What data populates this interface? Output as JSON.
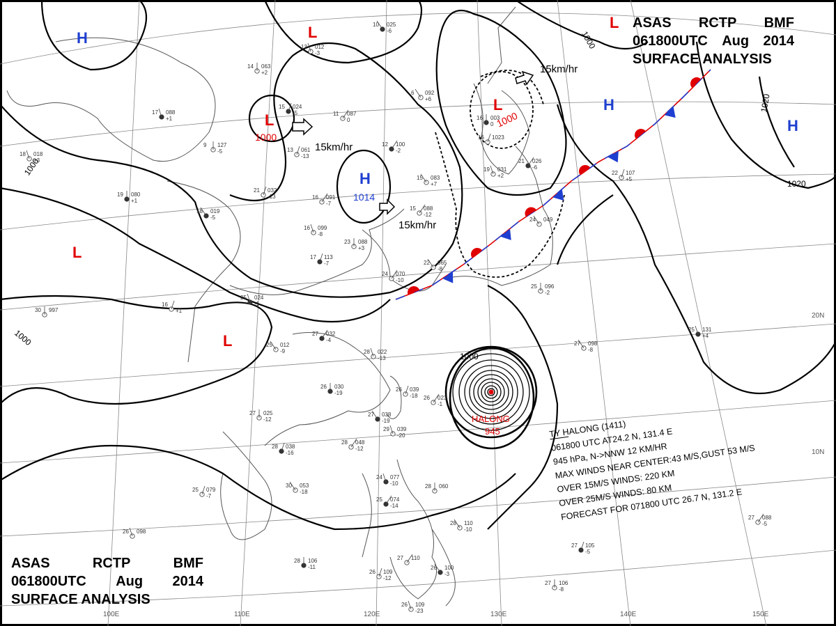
{
  "header": {
    "agency_code": "ASAS",
    "station": "RCTP",
    "issuer": "BMF",
    "datetime": "061800UTC",
    "month": "Aug",
    "year": "2014",
    "title": "SURFACE ANALYSIS"
  },
  "typhoon": {
    "name": "HALONG",
    "pressure_label": "945",
    "info_lines": [
      "TY HALONG  (1411)",
      "061800 UTC  AT24.2 N, 131.4 E",
      "945 hPa, N->NNW  12 KM/HR",
      "MAX WINDS NEAR CENTER:43 M/S,GUST 53 M/S",
      "OVER 15M/S WINDS: 220 KM",
      "OVER 25M/S WINDS: 80 KM",
      "FORECAST FOR 071800 UTC 26.7 N, 131.2 E"
    ]
  },
  "pressure_systems": [
    {
      "type": "H",
      "value": "",
      "color": "#1f3fd0"
    },
    {
      "type": "H",
      "value": "1014",
      "color": "#1f3fd0"
    },
    {
      "type": "H",
      "value": "",
      "color": "#1f3fd0"
    },
    {
      "type": "H",
      "value": "",
      "color": "#1f3fd0"
    },
    {
      "type": "L",
      "value": "",
      "color": "#e00000"
    },
    {
      "type": "L",
      "value": "1000",
      "color": "#e00000"
    },
    {
      "type": "L",
      "value": "1000",
      "color": "#e00000"
    },
    {
      "type": "L",
      "value": "",
      "color": "#e00000"
    },
    {
      "type": "L",
      "value": "",
      "color": "#e00000"
    },
    {
      "type": "L",
      "value": "",
      "color": "#e00000"
    }
  ],
  "movement_labels": [
    "15km/hr",
    "15km/hr",
    "15km/hr"
  ],
  "isobar_labels": [
    "1000",
    "1000",
    "1000",
    "1000",
    "1020",
    "1020"
  ],
  "latitude_labels": [
    "20N",
    "10N"
  ],
  "longitude_labels": [
    "100E",
    "110E",
    "120E",
    "130E",
    "140E",
    "150E"
  ],
  "front": {
    "warm_color": "#e00000",
    "cold_color": "#1f3fd0",
    "type": "stationary"
  },
  "station_plots": [
    {
      "t": "10",
      "p": "025",
      "d": "-6"
    },
    {
      "t": "13",
      "p": "012",
      "d": "-3"
    },
    {
      "t": "14",
      "p": "063",
      "d": "+2"
    },
    {
      "t": "15",
      "p": "024",
      "d": "-5"
    },
    {
      "t": "11",
      "p": "087",
      "d": "0"
    },
    {
      "t": "6",
      "p": "092",
      "d": "+6"
    },
    {
      "t": "17",
      "p": "088",
      "d": "+1"
    },
    {
      "t": "9",
      "p": "127",
      "d": "-5"
    },
    {
      "t": "13",
      "p": "061",
      "d": "-13"
    },
    {
      "t": "12",
      "p": "100",
      "d": "-2"
    },
    {
      "t": "15",
      "p": "083",
      "d": "+7"
    },
    {
      "t": "18",
      "p": "018",
      "d": "+3"
    },
    {
      "t": "19",
      "p": "080",
      "d": "+1"
    },
    {
      "t": "21",
      "p": "032",
      "d": "-13"
    },
    {
      "t": "16",
      "p": "091",
      "d": "-7"
    },
    {
      "t": "18",
      "p": "019",
      "d": "-5"
    },
    {
      "t": "16",
      "p": "099",
      "d": "-8"
    },
    {
      "t": "23",
      "p": "088",
      "d": "+3"
    },
    {
      "t": "17",
      "p": "113",
      "d": "-7"
    },
    {
      "t": "24",
      "p": "070",
      "d": "-10"
    },
    {
      "t": "22",
      "p": "065",
      "d": "-8"
    },
    {
      "t": "25",
      "p": "024",
      "d": "-1"
    },
    {
      "t": "30",
      "p": "997",
      "d": ""
    },
    {
      "t": "16",
      "p": "",
      "d": "+1"
    },
    {
      "t": "27",
      "p": "032",
      "d": "-4"
    },
    {
      "t": "25",
      "p": "012",
      "d": "-9"
    },
    {
      "t": "28",
      "p": "022",
      "d": "-13"
    },
    {
      "t": "26",
      "p": "030",
      "d": "-19"
    },
    {
      "t": "26",
      "p": "039",
      "d": "-18"
    },
    {
      "t": "26",
      "p": "023",
      "d": "-1"
    },
    {
      "t": "27",
      "p": "038",
      "d": "-19"
    },
    {
      "t": "29",
      "p": "039",
      "d": "-20"
    },
    {
      "t": "27",
      "p": "025",
      "d": "-12"
    },
    {
      "t": "28",
      "p": "038",
      "d": "-16"
    },
    {
      "t": "28",
      "p": "048",
      "d": "-12"
    },
    {
      "t": "30",
      "p": "053",
      "d": "-18"
    },
    {
      "t": "24",
      "p": "077",
      "d": "-10"
    },
    {
      "t": "28",
      "p": "060",
      "d": ""
    },
    {
      "t": "25",
      "p": "079",
      "d": "-7"
    },
    {
      "t": "25",
      "p": "074",
      "d": "-14"
    },
    {
      "t": "28",
      "p": "110",
      "d": "-10"
    },
    {
      "t": "26",
      "p": "098",
      "d": ""
    },
    {
      "t": "28",
      "p": "106",
      "d": "-11"
    },
    {
      "t": "26",
      "p": "109",
      "d": "-12"
    },
    {
      "t": "27",
      "p": "110",
      "d": ""
    },
    {
      "t": "26",
      "p": "100",
      "d": "-3"
    },
    {
      "t": "26",
      "p": "109",
      "d": "-23"
    },
    {
      "t": "27",
      "p": "106",
      "d": "-8"
    },
    {
      "t": "27",
      "p": "105",
      "d": "-5"
    },
    {
      "t": "27",
      "p": "088",
      "d": "-5"
    },
    {
      "t": "27",
      "p": "098",
      "d": "-8"
    },
    {
      "t": "25",
      "p": "131",
      "d": "+4"
    },
    {
      "t": "25",
      "p": "096",
      "d": "-2"
    },
    {
      "t": "22",
      "p": "107",
      "d": "+5"
    },
    {
      "t": "21",
      "p": "026",
      "d": "-6"
    },
    {
      "t": "24",
      "p": "049",
      "d": ""
    },
    {
      "t": "19",
      "p": "031",
      "d": "+2"
    },
    {
      "t": "16",
      "p": "003",
      "d": "0"
    },
    {
      "t": "16",
      "p": "1023",
      "d": ""
    },
    {
      "t": "15",
      "p": "088",
      "d": "-12"
    }
  ]
}
